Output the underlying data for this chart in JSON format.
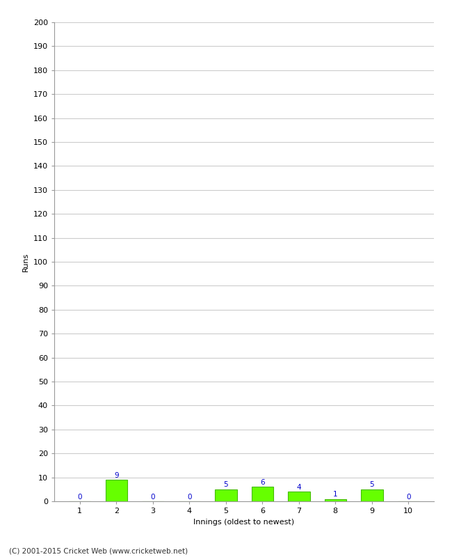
{
  "xlabel": "Innings (oldest to newest)",
  "ylabel": "Runs",
  "categories": [
    1,
    2,
    3,
    4,
    5,
    6,
    7,
    8,
    9,
    10
  ],
  "values": [
    0,
    9,
    0,
    0,
    5,
    6,
    4,
    1,
    5,
    0
  ],
  "bar_color": "#66ff00",
  "bar_edge_color": "#44bb00",
  "value_color": "#0000cc",
  "ylim": [
    0,
    200
  ],
  "yticks": [
    0,
    10,
    20,
    30,
    40,
    50,
    60,
    70,
    80,
    90,
    100,
    110,
    120,
    130,
    140,
    150,
    160,
    170,
    180,
    190,
    200
  ],
  "background_color": "#ffffff",
  "grid_color": "#cccccc",
  "footer": "(C) 2001-2015 Cricket Web (www.cricketweb.net)",
  "value_fontsize": 7.5,
  "axis_label_fontsize": 8,
  "tick_fontsize": 8,
  "footer_fontsize": 7.5
}
